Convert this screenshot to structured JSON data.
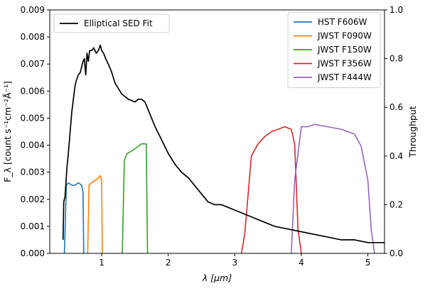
{
  "chart_data": {
    "type": "line",
    "x_axis": {
      "label": "λ [μm]",
      "lim": [
        0.22,
        5.25
      ],
      "ticks": [
        1,
        2,
        3,
        4,
        5
      ],
      "tick_labels": [
        "1",
        "2",
        "3",
        "4",
        "5"
      ]
    },
    "y_axis_left": {
      "label": "F_λ [count s⁻¹cm⁻²Å⁻¹]",
      "lim": [
        0,
        0.009
      ],
      "ticks": [
        0,
        0.001,
        0.002,
        0.003,
        0.004,
        0.005,
        0.006,
        0.007,
        0.008,
        0.009
      ],
      "tick_labels": [
        "0.000",
        "0.001",
        "0.002",
        "0.003",
        "0.004",
        "0.005",
        "0.006",
        "0.007",
        "0.008",
        "0.009"
      ]
    },
    "y_axis_right": {
      "label": "Throughput",
      "lim": [
        0,
        1.0
      ],
      "ticks": [
        0,
        0.2,
        0.4,
        0.6,
        0.8,
        1.0
      ],
      "tick_labels": [
        "0.0",
        "0.2",
        "0.4",
        "0.6",
        "0.8",
        "1.0"
      ]
    },
    "legend_left": {
      "position": "top-left",
      "entries": [
        {
          "name": "Elliptical SED Fit",
          "color": "#000000"
        }
      ]
    },
    "legend_right": {
      "position": "top-right",
      "entries": [
        {
          "name": "HST F606W",
          "color": "#1f77b4"
        },
        {
          "name": "JWST F090W",
          "color": "#ff7f0e"
        },
        {
          "name": "JWST F150W",
          "color": "#2ca02c"
        },
        {
          "name": "JWST F356W",
          "color": "#d62728"
        },
        {
          "name": "JWST F444W",
          "color": "#9467bd"
        }
      ]
    },
    "sed": {
      "name": "Elliptical SED Fit",
      "axis": "left",
      "color": "#000000",
      "x": [
        0.42,
        0.43,
        0.45,
        0.48,
        0.5,
        0.52,
        0.55,
        0.58,
        0.6,
        0.62,
        0.65,
        0.68,
        0.7,
        0.72,
        0.74,
        0.76,
        0.78,
        0.8,
        0.82,
        0.85,
        0.88,
        0.9,
        0.92,
        0.95,
        0.98,
        1.0,
        1.03,
        1.06,
        1.1,
        1.15,
        1.2,
        1.3,
        1.4,
        1.5,
        1.55,
        1.6,
        1.65,
        1.7,
        1.75,
        1.8,
        1.9,
        2.0,
        2.1,
        2.2,
        2.3,
        2.4,
        2.5,
        2.6,
        2.7,
        2.8,
        2.9,
        3.0,
        3.2,
        3.4,
        3.6,
        3.8,
        4.0,
        4.2,
        4.4,
        4.6,
        4.8,
        5.0,
        5.25
      ],
      "y": [
        0.0005,
        0.0019,
        0.0021,
        0.0032,
        0.0037,
        0.0043,
        0.0052,
        0.0058,
        0.0062,
        0.0064,
        0.0066,
        0.0067,
        0.0069,
        0.0071,
        0.0072,
        0.0066,
        0.0074,
        0.0071,
        0.0075,
        0.0075,
        0.0076,
        0.0075,
        0.0074,
        0.0075,
        0.0077,
        0.0075,
        0.0074,
        0.0072,
        0.007,
        0.0067,
        0.0063,
        0.0059,
        0.0057,
        0.0056,
        0.0057,
        0.0057,
        0.0056,
        0.0053,
        0.005,
        0.0047,
        0.0042,
        0.0037,
        0.0033,
        0.003,
        0.0028,
        0.0025,
        0.0022,
        0.0019,
        0.0018,
        0.0018,
        0.0017,
        0.0016,
        0.0014,
        0.0012,
        0.001,
        0.0009,
        0.0008,
        0.0007,
        0.0006,
        0.0005,
        0.0005,
        0.0004,
        0.0004
      ]
    },
    "filters": [
      {
        "name": "HST F606W",
        "axis": "right",
        "color": "#1f77b4",
        "x": [
          0.44,
          0.47,
          0.5,
          0.55,
          0.6,
          0.65,
          0.7,
          0.72,
          0.73
        ],
        "y": [
          0.0,
          0.28,
          0.29,
          0.28,
          0.28,
          0.29,
          0.28,
          0.25,
          0.0
        ]
      },
      {
        "name": "JWST F090W",
        "axis": "right",
        "color": "#ff7f0e",
        "x": [
          0.79,
          0.81,
          0.85,
          0.9,
          0.95,
          0.98,
          1.0,
          1.01
        ],
        "y": [
          0.0,
          0.28,
          0.29,
          0.3,
          0.31,
          0.32,
          0.3,
          0.0
        ]
      },
      {
        "name": "JWST F150W",
        "axis": "right",
        "color": "#2ca02c",
        "x": [
          1.31,
          1.34,
          1.38,
          1.45,
          1.5,
          1.55,
          1.6,
          1.64,
          1.67,
          1.69
        ],
        "y": [
          0.0,
          0.38,
          0.41,
          0.42,
          0.43,
          0.44,
          0.45,
          0.45,
          0.45,
          0.0
        ]
      },
      {
        "name": "JWST F356W",
        "axis": "right",
        "color": "#d62728",
        "x": [
          3.1,
          3.15,
          3.25,
          3.35,
          3.45,
          3.55,
          3.65,
          3.75,
          3.85,
          3.9,
          3.95,
          4.0
        ],
        "y": [
          0.0,
          0.08,
          0.4,
          0.45,
          0.48,
          0.5,
          0.51,
          0.52,
          0.51,
          0.45,
          0.1,
          0.0
        ]
      },
      {
        "name": "JWST F444W",
        "axis": "right",
        "color": "#9467bd",
        "x": [
          3.85,
          3.9,
          4.0,
          4.1,
          4.2,
          4.4,
          4.6,
          4.8,
          4.9,
          5.0,
          5.05,
          5.1
        ],
        "y": [
          0.0,
          0.3,
          0.52,
          0.52,
          0.53,
          0.52,
          0.51,
          0.49,
          0.44,
          0.3,
          0.1,
          0.0
        ]
      }
    ],
    "grid": false
  }
}
